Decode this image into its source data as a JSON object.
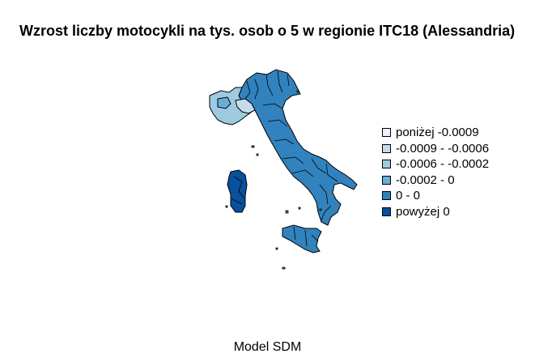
{
  "title": "Wzrost liczby motocykli na tys. osob o 5 w regionie ITC18 (Alessandria)",
  "caption": "Model SDM",
  "legend": [
    {
      "label": "poniżej -0.0009",
      "color": "#eff3ff"
    },
    {
      "label": "-0.0009 - -0.0006",
      "color": "#c6dbef"
    },
    {
      "label": "-0.0006 - -0.0002",
      "color": "#9ecae1"
    },
    {
      "label": "-0.0002 - 0",
      "color": "#6baed6"
    },
    {
      "label": "0 - 0",
      "color": "#3182bd"
    },
    {
      "label": "powyżej 0",
      "color": "#08519c"
    }
  ]
}
